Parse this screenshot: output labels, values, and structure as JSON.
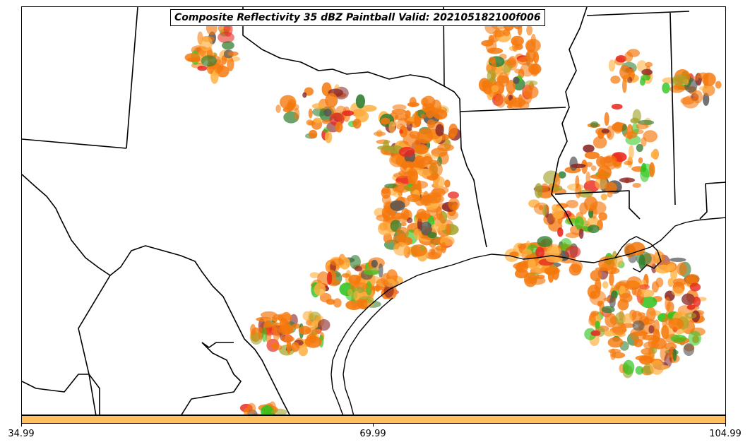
{
  "map": {
    "title": "Composite Reflectivity 35 dBZ Paintball Valid: 202105182100f006",
    "region": "South Central United States (Texas, Louisiana, Oklahoma, Arkansas, Mississippi, northern Mexico)",
    "features": [
      "state-borders",
      "country-border",
      "coastline",
      "reflectivity-paintball-blobs"
    ],
    "colors": {
      "border": "#000000",
      "orange": "#f5780c",
      "light_orange": "#ffb040",
      "red": "#e8271e",
      "dark_red": "#8b2a2a",
      "green": "#2fc41d",
      "dark_green": "#2e7d2e",
      "olive": "#a3a32b",
      "gray": "#555555"
    }
  },
  "colorbar": {
    "color": "#ffc060",
    "ticks": [
      "34.99",
      "69.99",
      "104.99"
    ]
  }
}
